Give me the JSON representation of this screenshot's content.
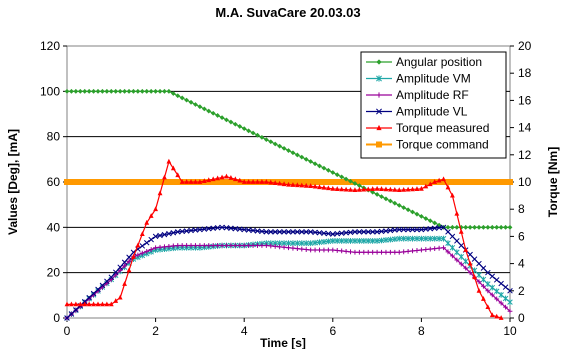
{
  "chart_data": {
    "type": "line",
    "title": "M.A. SuvaCare 20.03.03",
    "xlabel": "Time [s]",
    "ylabel": "Values [Deg], [mA]",
    "y2label": "Torque [Nm]",
    "xlim": [
      0,
      10
    ],
    "ylim": [
      0,
      120
    ],
    "y2lim": [
      0,
      20
    ],
    "xticks": [
      "0",
      "2",
      "4",
      "6",
      "8",
      "10"
    ],
    "yticks": [
      "0",
      "20",
      "40",
      "60",
      "80",
      "100",
      "120"
    ],
    "y2ticks": [
      "0",
      "2",
      "4",
      "6",
      "8",
      "10",
      "12",
      "14",
      "16",
      "18",
      "20"
    ],
    "grid": "horizontal",
    "legend_position": "top-right",
    "series": [
      {
        "name": "Angular position",
        "axis": "left",
        "color": "#2ca02c",
        "marker": "diamond",
        "x": [
          0,
          2.3,
          8.5,
          10
        ],
        "y": [
          100,
          100,
          40,
          40
        ]
      },
      {
        "name": "Amplitude VM",
        "axis": "left",
        "color": "#1fa7a7",
        "marker": "star",
        "x": [
          0,
          1.0,
          1.5,
          2.0,
          2.5,
          3.0,
          3.5,
          4.0,
          4.5,
          5.0,
          5.5,
          6.0,
          6.5,
          7.0,
          7.5,
          8.0,
          8.5,
          9.0,
          9.5,
          10
        ],
        "y": [
          0,
          17,
          26,
          30,
          31,
          31,
          32,
          32,
          33,
          33,
          33,
          34,
          34,
          34,
          35,
          35,
          35,
          25,
          15,
          7
        ]
      },
      {
        "name": "Amplitude RF",
        "axis": "left",
        "color": "#990099",
        "marker": "plus",
        "x": [
          0,
          1.0,
          1.5,
          2.0,
          2.5,
          3.0,
          3.5,
          4.0,
          4.5,
          5.0,
          5.5,
          6.0,
          6.5,
          7.0,
          7.5,
          8.0,
          8.5,
          9.0,
          9.5,
          10
        ],
        "y": [
          0,
          17,
          27,
          31,
          32,
          32,
          32,
          32,
          32,
          31,
          30,
          30,
          29,
          29,
          29,
          30,
          31,
          22,
          12,
          3
        ]
      },
      {
        "name": "Amplitude VL",
        "axis": "left",
        "color": "#000080",
        "marker": "x",
        "x": [
          0,
          1.0,
          1.5,
          2.0,
          2.5,
          3.0,
          3.5,
          4.0,
          4.5,
          5.0,
          5.5,
          6.0,
          6.5,
          7.0,
          7.5,
          8.0,
          8.5,
          9.0,
          9.5,
          10
        ],
        "y": [
          0,
          18,
          29,
          36,
          38,
          39,
          40,
          39,
          38,
          38,
          38,
          37,
          38,
          38,
          39,
          39,
          40,
          30,
          20,
          12
        ]
      },
      {
        "name": "Torque measured",
        "axis": "right",
        "color": "#ff0000",
        "marker": "triangle",
        "x": [
          0,
          0.5,
          1.0,
          1.2,
          1.5,
          1.8,
          2.0,
          2.3,
          2.6,
          3.0,
          3.3,
          3.6,
          4.0,
          4.5,
          5.0,
          5.5,
          6.0,
          6.5,
          7.0,
          7.5,
          8.0,
          8.3,
          8.5,
          8.7,
          9.0,
          9.3,
          9.6,
          9.8
        ],
        "y": [
          1.0,
          1.0,
          1.0,
          1.5,
          4.5,
          7.0,
          8.0,
          11.5,
          10.0,
          10.0,
          10.2,
          10.4,
          10.0,
          10.0,
          9.8,
          9.7,
          9.5,
          9.4,
          9.5,
          9.4,
          9.5,
          10.0,
          10.2,
          9.0,
          5.0,
          2.0,
          0.2,
          0.0
        ]
      },
      {
        "name": "Torque command",
        "axis": "right",
        "color": "#ff9900",
        "marker": "square",
        "x": [
          0,
          10
        ],
        "y": [
          10,
          10
        ]
      }
    ]
  }
}
